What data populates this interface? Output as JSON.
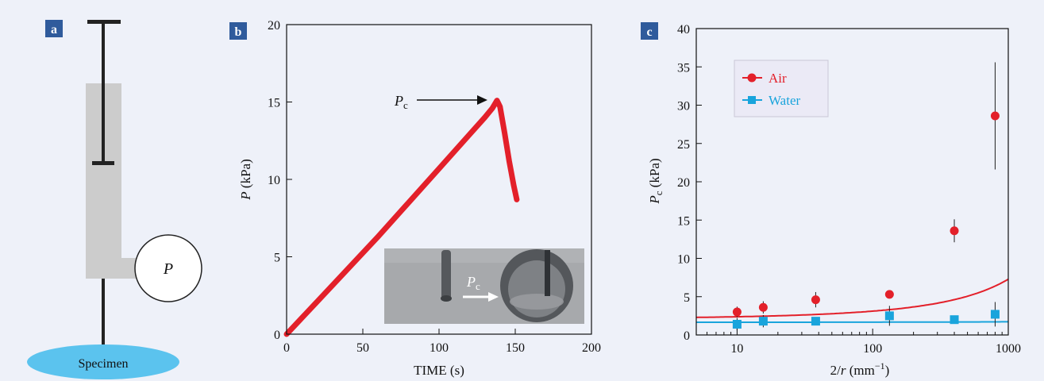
{
  "figure": {
    "background": "#eef1f9",
    "label_color": "#2f5b9c"
  },
  "panel_a": {
    "label": "a",
    "circle_label": "P",
    "specimen_label": "Specimen",
    "colors": {
      "body": "#cccccc",
      "rod": "#222222",
      "specimen": "#5bc3ee"
    }
  },
  "chart_data": [
    {
      "panel": "b",
      "type": "line",
      "xlabel": "TIME (s)",
      "ylabel_main": "P",
      "ylabel_unit": " (kPa)",
      "xlim": [
        0,
        200
      ],
      "ylim": [
        0,
        20
      ],
      "xticks": [
        "0",
        "50",
        "100",
        "150",
        "200"
      ],
      "yticks": [
        "0",
        "5",
        "10",
        "15",
        "20"
      ],
      "series": [
        {
          "color": "#e3202a",
          "x": [
            0,
            20,
            40,
            60,
            80,
            100,
            120,
            130,
            135,
            138,
            140,
            143,
            146,
            149,
            151
          ],
          "y": [
            0,
            2.1,
            4.2,
            6.3,
            8.5,
            10.7,
            12.9,
            14.0,
            14.6,
            15.1,
            14.7,
            13.0,
            11.2,
            9.6,
            8.7
          ]
        }
      ],
      "annotation": {
        "main": "P",
        "sub": "c",
        "target_x": 138,
        "target_y": 15.1
      },
      "inset": {
        "label_main": "P",
        "label_sub": "c"
      }
    },
    {
      "panel": "c",
      "type": "scatter",
      "xlabel_prefix": "2/",
      "xlabel_var": "r",
      "xlabel_unit": " (mm",
      "xlabel_sup": "−1",
      "xlabel_close": ")",
      "ylabel_main": "P",
      "ylabel_sub": "c",
      "ylabel_unit": " (kPa)",
      "xscale": "log",
      "xlim": [
        5,
        1000
      ],
      "ylim": [
        0,
        40
      ],
      "xticks": [
        "10",
        "100",
        "1000"
      ],
      "yticks": [
        "0",
        "5",
        "10",
        "15",
        "20",
        "25",
        "30",
        "35",
        "40"
      ],
      "legend_position": "top-left",
      "series": [
        {
          "name": "Air",
          "color": "#e3202a",
          "marker": "circle",
          "x": [
            10,
            15.6,
            38,
            133,
            400,
            800
          ],
          "y": [
            3.0,
            3.6,
            4.6,
            5.3,
            13.6,
            28.6
          ],
          "err": [
            0.7,
            0.8,
            1.0,
            0.5,
            1.5,
            7.0
          ],
          "fit": {
            "a": 2.1,
            "b": 0.0393
          }
        },
        {
          "name": "Water",
          "color": "#19a4dc",
          "marker": "square",
          "x": [
            10,
            15.6,
            38,
            133,
            400,
            800
          ],
          "y": [
            1.4,
            1.8,
            1.8,
            2.5,
            2.0,
            2.7
          ],
          "err": [
            0.8,
            0.8,
            0.0,
            1.3,
            0.0,
            1.6
          ],
          "fit": {
            "a": 1.65,
            "b": 0.0013
          }
        }
      ]
    }
  ]
}
